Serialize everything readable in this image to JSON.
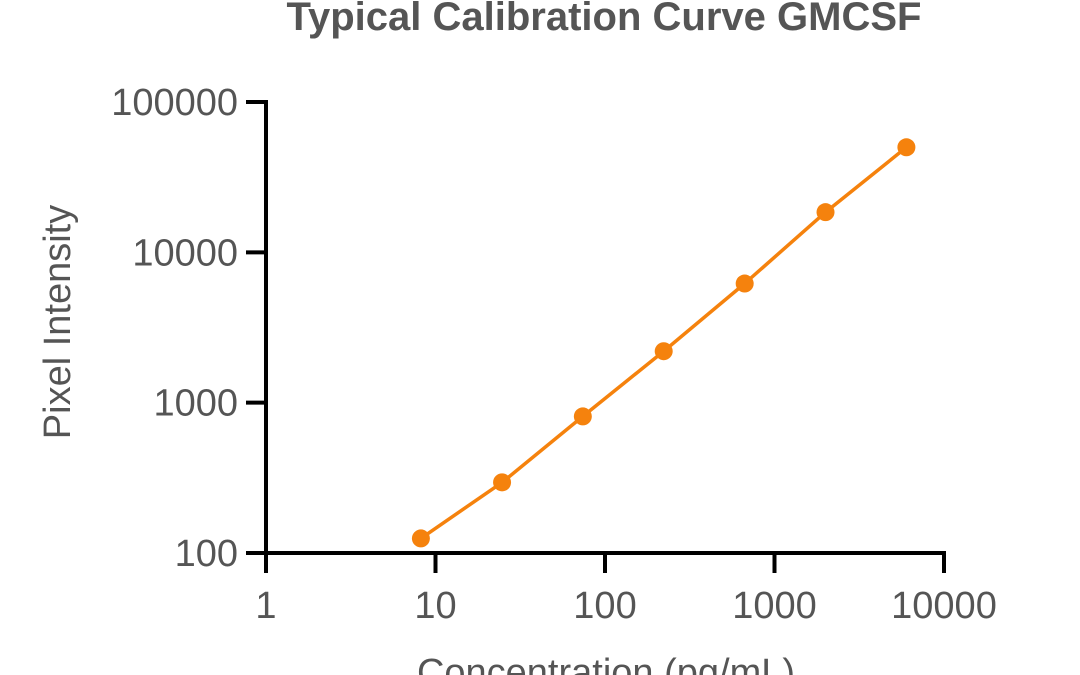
{
  "chart_data": {
    "type": "line",
    "title": "Typical Calibration Curve GMCSF",
    "xlabel": "Concentration (pg/mL)",
    "ylabel": "Pixel Intensity",
    "x_scale": "log",
    "y_scale": "log",
    "xlim": [
      1,
      10000
    ],
    "ylim": [
      100,
      100000
    ],
    "x_ticks": [
      "1",
      "10",
      "100",
      "1000",
      "10000"
    ],
    "y_ticks": [
      "100",
      "1000",
      "10000",
      "100000"
    ],
    "grid": false,
    "legend": "none",
    "series": [
      {
        "color": "#f5820d",
        "x": [
          8.2,
          24.7,
          74,
          222,
          667,
          2000,
          6000
        ],
        "y": [
          125,
          295,
          810,
          2200,
          6200,
          18500,
          50000
        ]
      }
    ]
  }
}
